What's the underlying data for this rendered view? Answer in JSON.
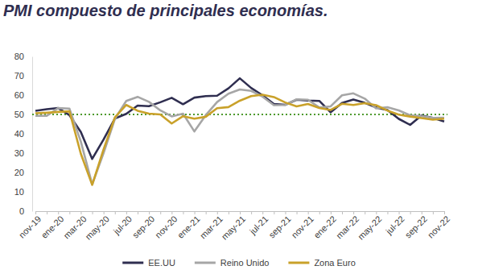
{
  "chart_data": {
    "type": "line",
    "title": "PMI compuesto de principales economías.",
    "categories": [
      "nov-19",
      null,
      "ene-20",
      null,
      "mar-20",
      null,
      "may-20",
      null,
      "jul-20",
      null,
      "sep-20",
      null,
      "nov-20",
      null,
      "ene-21",
      null,
      "mar-21",
      null,
      "may-21",
      null,
      "jul-21",
      null,
      "sep-21",
      null,
      "nov-21",
      null,
      "ene-22",
      null,
      "mar-22",
      null,
      "may-22",
      null,
      "jul-22",
      null,
      "sep-22",
      null,
      "nov-22"
    ],
    "series": [
      {
        "name": "EE.UU",
        "color": "#2f2e50",
        "values": [
          51.9,
          52.7,
          53.3,
          49.6,
          40.9,
          27.0,
          37.0,
          47.9,
          50.3,
          54.6,
          54.3,
          56.3,
          58.6,
          55.3,
          58.7,
          59.5,
          59.7,
          63.5,
          68.7,
          63.7,
          59.9,
          55.4,
          55.0,
          57.6,
          57.2,
          57.0,
          51.1,
          55.9,
          57.7,
          56.0,
          53.6,
          52.3,
          47.7,
          44.6,
          49.5,
          48.2,
          46.4
        ]
      },
      {
        "name": "Reino Unido",
        "color": "#a6a6a6",
        "values": [
          49.3,
          49.3,
          53.3,
          53.0,
          36.0,
          13.8,
          30.0,
          47.7,
          57.0,
          59.1,
          56.5,
          52.1,
          49.0,
          50.4,
          41.2,
          49.6,
          56.4,
          60.7,
          62.9,
          62.2,
          59.2,
          54.8,
          54.9,
          57.8,
          57.6,
          53.6,
          54.2,
          59.9,
          60.9,
          58.2,
          53.1,
          53.7,
          52.1,
          49.6,
          49.1,
          48.2,
          48.3
        ]
      },
      {
        "name": "Zona Euro",
        "color": "#c9a12a",
        "values": [
          50.6,
          50.9,
          51.3,
          51.6,
          29.7,
          13.6,
          31.9,
          48.5,
          54.9,
          51.9,
          50.4,
          50.0,
          45.3,
          49.1,
          47.8,
          48.8,
          53.2,
          53.8,
          57.1,
          59.5,
          60.2,
          59.0,
          56.2,
          54.2,
          55.4,
          53.3,
          52.3,
          55.5,
          54.9,
          55.8,
          54.8,
          52.0,
          49.9,
          48.9,
          48.1,
          47.3,
          47.8
        ]
      }
    ],
    "ylim": [
      0,
      80
    ],
    "yticks": [
      0,
      10,
      20,
      30,
      40,
      50,
      60,
      70,
      80
    ],
    "grid": false,
    "legend": "bottom",
    "reference_line": {
      "value": 50,
      "color": "#4e9a2e",
      "line_style": "dotted"
    }
  }
}
